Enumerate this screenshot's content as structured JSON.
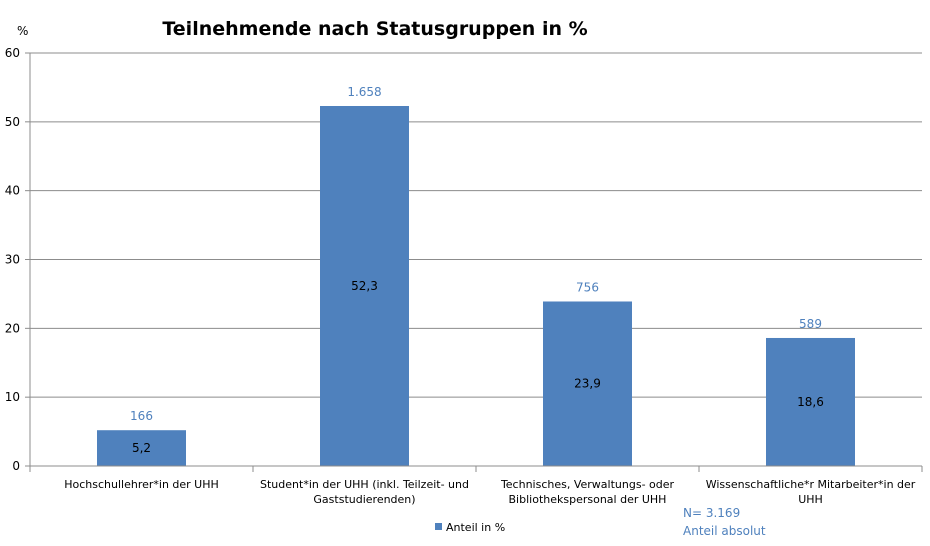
{
  "chart_data": {
    "type": "bar",
    "title": "Teilnehmende nach Statusgruppen in %",
    "ylabel": "%",
    "ylim": [
      0,
      60
    ],
    "yticks": [
      0,
      10,
      20,
      30,
      40,
      50,
      60
    ],
    "grid": true,
    "categories": [
      [
        "Hochschullehrer*in der UHH"
      ],
      [
        "Student*in der UHH (inkl. Teilzeit- und",
        "Gaststudierenden)"
      ],
      [
        "Technisches, Verwaltungs- oder",
        "Bibliothekspersonal der UHH"
      ],
      [
        "Wissenschaftliche*r Mitarbeiter*in der",
        "UHH"
      ]
    ],
    "series": [
      {
        "name": "Anteil in %",
        "color": "#4f81bd",
        "values": [
          5.2,
          52.3,
          23.9,
          18.6
        ],
        "value_labels": [
          "5,2",
          "52,3",
          "23,9",
          "18,6"
        ]
      }
    ],
    "absolute_labels": [
      "166",
      "1.658",
      "756",
      "589"
    ],
    "notes": [
      "N= 3.169",
      "Anteil absolut"
    ],
    "legend_position": "bottom"
  }
}
